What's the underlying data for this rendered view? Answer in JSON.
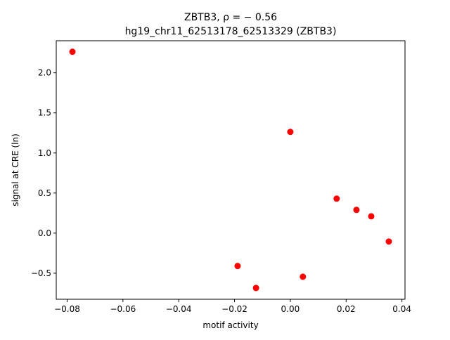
{
  "chart_data": {
    "type": "scatter",
    "title_line1": "ZBTB3, ρ = − 0.56",
    "title_line2": "hg19_chr11_62513178_62513329 (ZBTB3)",
    "xlabel": "motif activity",
    "ylabel": "signal at CRE (ln)",
    "xlim": [
      -0.0839,
      0.0411
    ],
    "ylim": [
      -0.825,
      2.4
    ],
    "xticks": [
      -0.08,
      -0.06,
      -0.04,
      -0.02,
      0.0,
      0.02,
      0.04
    ],
    "xtick_labels": [
      "−0.08",
      "−0.06",
      "−0.04",
      "−0.02",
      "0.00",
      "0.02",
      "0.04"
    ],
    "yticks": [
      -0.5,
      0.0,
      0.5,
      1.0,
      1.5,
      2.0
    ],
    "ytick_labels": [
      "−0.5",
      "0.0",
      "0.5",
      "1.0",
      "1.5",
      "2.0"
    ],
    "grid": false,
    "marker_color": "#ff0000",
    "points": [
      {
        "x": -0.0781,
        "y": 2.263
      },
      {
        "x": 0.0,
        "y": 1.263
      },
      {
        "x": 0.0166,
        "y": 0.43
      },
      {
        "x": 0.0237,
        "y": 0.29
      },
      {
        "x": 0.029,
        "y": 0.21
      },
      {
        "x": 0.0353,
        "y": -0.105
      },
      {
        "x": -0.0189,
        "y": -0.41
      },
      {
        "x": -0.0123,
        "y": -0.684
      },
      {
        "x": 0.0045,
        "y": -0.544
      }
    ]
  }
}
